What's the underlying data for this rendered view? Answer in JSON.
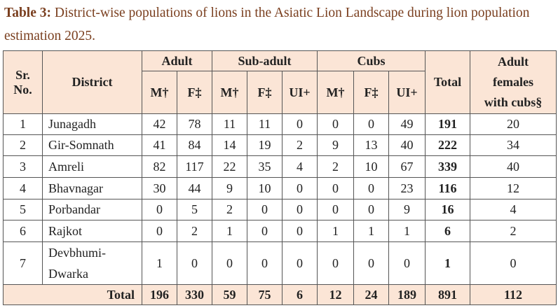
{
  "caption": {
    "label": "Table 3:",
    "text": " District-wise populations of lions in the Asiatic Lion Landscape during lion population estimation 2025."
  },
  "headers": {
    "sr_line1": "Sr.",
    "sr_line2": "No.",
    "district": "District",
    "adult": "Adult",
    "subadult": "Sub-adult",
    "cubs": "Cubs",
    "total": "Total",
    "afwc_line1": "Adult",
    "afwc_line2": "females",
    "afwc_line3": "with cubs§",
    "m": "M†",
    "f": "F‡",
    "ui": "UI+"
  },
  "rows": [
    {
      "sr": "1",
      "district": "Junagadh",
      "adult_m": "42",
      "adult_f": "78",
      "sub_m": "11",
      "sub_f": "11",
      "sub_ui": "0",
      "cub_m": "0",
      "cub_f": "0",
      "cub_ui": "49",
      "total": "191",
      "afwc": "20"
    },
    {
      "sr": "2",
      "district": "Gir-Somnath",
      "adult_m": "41",
      "adult_f": "84",
      "sub_m": "14",
      "sub_f": "19",
      "sub_ui": "2",
      "cub_m": "9",
      "cub_f": "13",
      "cub_ui": "40",
      "total": "222",
      "afwc": "34"
    },
    {
      "sr": "3",
      "district": "Amreli",
      "adult_m": "82",
      "adult_f": "117",
      "sub_m": "22",
      "sub_f": "35",
      "sub_ui": "4",
      "cub_m": "2",
      "cub_f": "10",
      "cub_ui": "67",
      "total": "339",
      "afwc": "40"
    },
    {
      "sr": "4",
      "district": "Bhavnagar",
      "adult_m": "30",
      "adult_f": "44",
      "sub_m": "9",
      "sub_f": "10",
      "sub_ui": "0",
      "cub_m": "0",
      "cub_f": "0",
      "cub_ui": "23",
      "total": "116",
      "afwc": "12"
    },
    {
      "sr": "5",
      "district": "Porbandar",
      "adult_m": "0",
      "adult_f": "5",
      "sub_m": "2",
      "sub_f": "0",
      "sub_ui": "0",
      "cub_m": "0",
      "cub_f": "0",
      "cub_ui": "9",
      "total": "16",
      "afwc": "4"
    },
    {
      "sr": "6",
      "district": "Rajkot",
      "adult_m": "0",
      "adult_f": "2",
      "sub_m": "1",
      "sub_f": "0",
      "sub_ui": "0",
      "cub_m": "1",
      "cub_f": "1",
      "cub_ui": "1",
      "total": "6",
      "afwc": "2"
    },
    {
      "sr": "7",
      "district_line1": "Devbhumi-",
      "district_line2": "Dwarka",
      "adult_m": "1",
      "adult_f": "0",
      "sub_m": "0",
      "sub_f": "0",
      "sub_ui": "0",
      "cub_m": "0",
      "cub_f": "0",
      "cub_ui": "0",
      "total": "1",
      "afwc": "0"
    }
  ],
  "totals": {
    "label": "Total",
    "adult_m": "196",
    "adult_f": "330",
    "sub_m": "59",
    "sub_f": "75",
    "sub_ui": "6",
    "cub_m": "12",
    "cub_f": "24",
    "cub_ui": "189",
    "total": "891",
    "afwc": "112"
  }
}
